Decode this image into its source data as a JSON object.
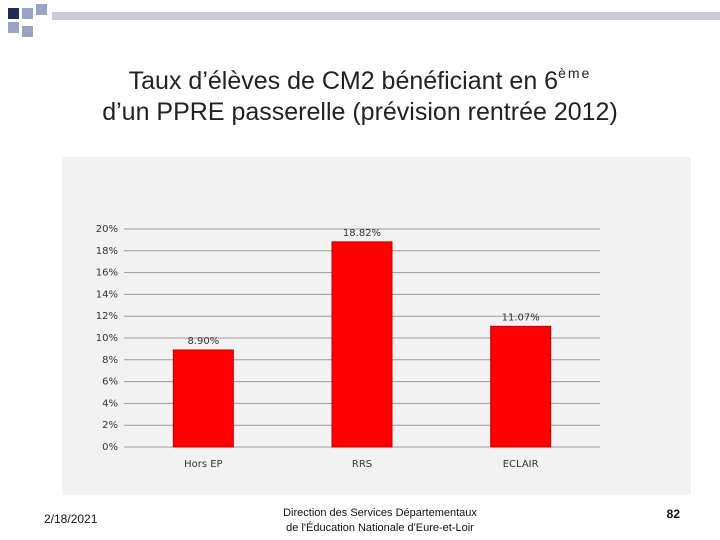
{
  "slide": {
    "title_main": "Taux d’élèves de CM2 bénéficiant en 6",
    "title_sup": "ème",
    "title_line2": "d’un PPRE passerelle (prévision rentrée 2012)",
    "date": "2/18/2021",
    "footer_line1": "Direction des Services Départementaux",
    "footer_line2": "de l'Éducation Nationale d'Eure-et-Loir",
    "page_number": "82"
  },
  "colors": {
    "bar": "#ff0000",
    "bar_border": "#c00000",
    "panel": "#f2f2f2",
    "gridline": "#9a9a9a",
    "deco_dark": "#1f2a5a",
    "deco_light": "#9aa3c7"
  },
  "chart_data": {
    "type": "bar",
    "categories": [
      "Hors EP",
      "RRS",
      "ECLAIR"
    ],
    "values": [
      8.9,
      18.82,
      11.07
    ],
    "data_labels": [
      "8.90%",
      "18.82%",
      "11.07%"
    ],
    "y_ticks": [
      "0%",
      "2%",
      "4%",
      "6%",
      "8%",
      "10%",
      "12%",
      "14%",
      "16%",
      "18%",
      "20%"
    ],
    "ylim": [
      0,
      20
    ],
    "grid": true,
    "legend": "none",
    "title": "",
    "xlabel": "",
    "ylabel": ""
  }
}
